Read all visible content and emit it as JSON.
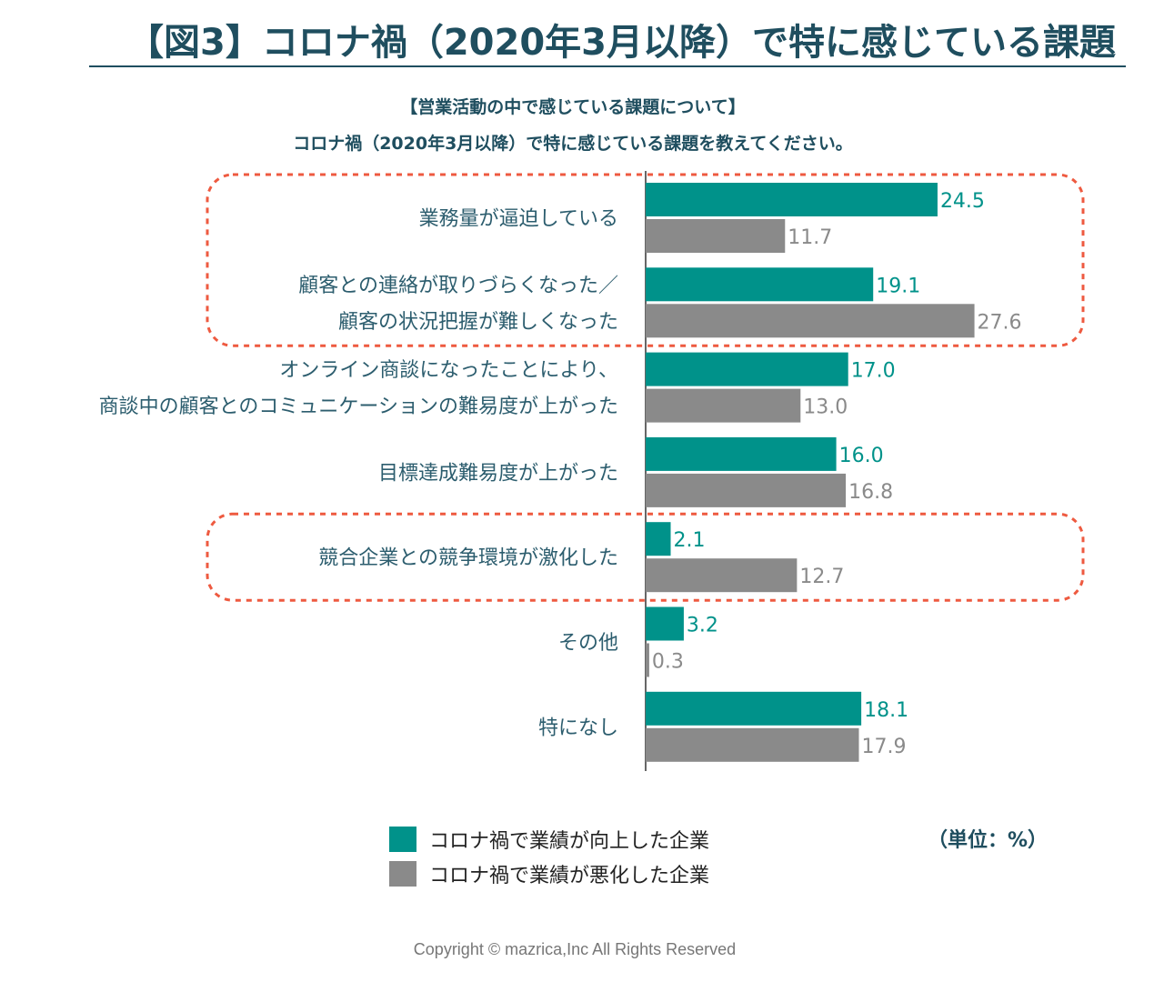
{
  "title": "【図3】コロナ禍（2020年3月以降）で特に感じている課題",
  "question": {
    "line1": "【営業活動の中で感じている課題について】",
    "line2": "コロナ禍（2020年3月以降）で特に感じている課題を教えてください。"
  },
  "colors": {
    "improved": "#00928a",
    "worsened": "#8a8a8a",
    "highlight": "#ee5a40",
    "title": "#1f4e5f"
  },
  "chart_data": {
    "type": "bar",
    "orientation": "horizontal",
    "categories": [
      [
        "業務量が逼迫している"
      ],
      [
        "顧客との連絡が取りづらくなった／",
        "顧客の状況把握が難しくなった"
      ],
      [
        "オンライン商談になったことにより、",
        "商談中の顧客とのコミュニケーションの難易度が上がった"
      ],
      [
        "目標達成難易度が上がった"
      ],
      [
        "競合企業との競争環境が激化した"
      ],
      [
        "その他"
      ],
      [
        "特になし"
      ]
    ],
    "series": [
      {
        "name": "コロナ禍で業績が向上した企業",
        "values": [
          24.5,
          19.1,
          17.0,
          16.0,
          2.1,
          3.2,
          18.1
        ]
      },
      {
        "name": "コロナ禍で業績が悪化した企業",
        "values": [
          11.7,
          27.6,
          13.0,
          16.8,
          12.7,
          0.3,
          17.9
        ]
      }
    ],
    "value_labels": [
      [
        "24.5",
        "19.1",
        "17.0",
        "16.0",
        "2.1",
        "3.2",
        "18.1"
      ],
      [
        "11.7",
        "27.6",
        "13.0",
        "16.8",
        "12.7",
        "0.3",
        "17.9"
      ]
    ],
    "highlighted_groups": [
      [
        0,
        1
      ],
      [
        4
      ]
    ],
    "unit": "（単位：%）"
  },
  "legend": {
    "improved": "コロナ禍で業績が向上した企業",
    "worsened": "コロナ禍で業績が悪化した企業"
  },
  "copyright": "Copyright © mazrica,Inc All Rights Reserved"
}
